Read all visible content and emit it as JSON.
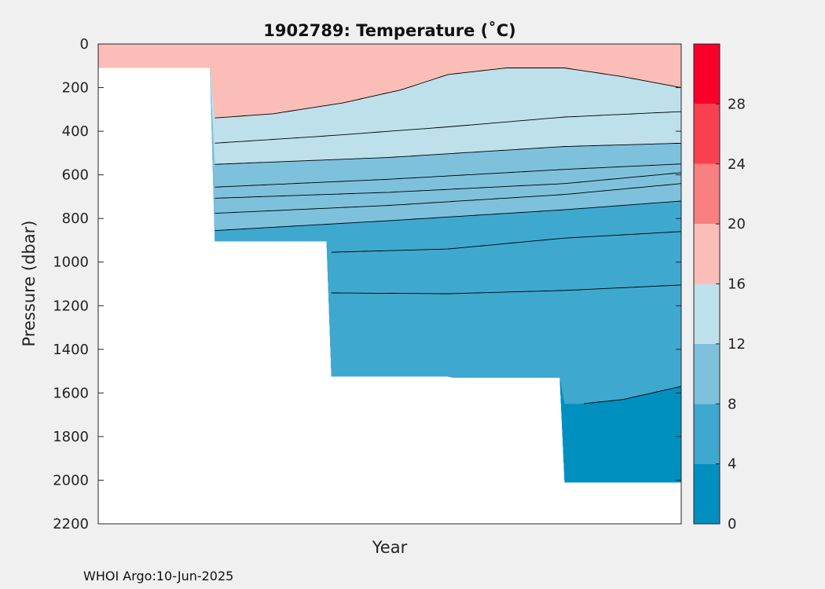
{
  "chart_data": {
    "type": "heatmap",
    "title": "1902789:  Temperature (˚C)",
    "xlabel": "Year",
    "ylabel": "Pressure (dbar)",
    "ylim": [
      0,
      2200
    ],
    "yticks": [
      "0",
      "200",
      "400",
      "600",
      "800",
      "1000",
      "1200",
      "1400",
      "1600",
      "1800",
      "2000",
      "2200"
    ],
    "colorbar": {
      "range": [
        0,
        32
      ],
      "ticks": [
        "0",
        "4",
        "8",
        "12",
        "16",
        "20",
        "24",
        "28"
      ],
      "bands": [
        {
          "from": 0,
          "to": 4,
          "color": "#0090c0"
        },
        {
          "from": 4,
          "to": 8,
          "color": "#3fa8cf"
        },
        {
          "from": 8,
          "to": 12,
          "color": "#7ec1dd"
        },
        {
          "from": 12,
          "to": 16,
          "color": "#bee0eb"
        },
        {
          "from": 16,
          "to": 20,
          "color": "#fbbdb7"
        },
        {
          "from": 20,
          "to": 24,
          "color": "#f88080"
        },
        {
          "from": 24,
          "to": 28,
          "color": "#f84050"
        },
        {
          "from": 28,
          "to": 32,
          "color": "#f8002a"
        }
      ]
    },
    "profiles": [
      {
        "max_pressure": 110
      },
      {
        "max_pressure": 905
      },
      {
        "max_pressure": 1525
      },
      {
        "max_pressure": 1530
      },
      {
        "max_pressure": 2010
      }
    ],
    "isotherms": [
      {
        "temp": 16,
        "x": [
          0.17,
          0.3,
          0.42,
          0.52,
          0.6,
          0.7,
          0.8,
          0.9,
          1.0
        ],
        "p": [
          345,
          320,
          270,
          210,
          140,
          110,
          110,
          150,
          200
        ]
      },
      {
        "temp": 14,
        "x": [
          0.17,
          0.4,
          0.6,
          0.8,
          1.0
        ],
        "p": [
          460,
          420,
          380,
          335,
          310
        ]
      },
      {
        "temp": 12,
        "x": [
          0.17,
          0.5,
          0.8,
          1.0
        ],
        "p": [
          555,
          520,
          470,
          455
        ]
      },
      {
        "temp": 11,
        "x": [
          0.17,
          0.5,
          0.8,
          1.0
        ],
        "p": [
          660,
          620,
          575,
          550
        ]
      },
      {
        "temp": 10,
        "x": [
          0.17,
          0.5,
          0.8,
          1.0
        ],
        "p": [
          710,
          680,
          640,
          590
        ]
      },
      {
        "temp": 9,
        "x": [
          0.17,
          0.5,
          0.8,
          1.0
        ],
        "p": [
          780,
          740,
          690,
          640
        ]
      },
      {
        "temp": 8,
        "x": [
          0.17,
          0.5,
          0.8,
          1.0
        ],
        "p": [
          860,
          810,
          760,
          720
        ]
      },
      {
        "temp": 7,
        "x": [
          0.33,
          0.6,
          0.8,
          1.0
        ],
        "p": [
          960,
          940,
          890,
          860
        ]
      },
      {
        "temp": 6,
        "x": [
          0.33,
          0.6,
          0.8,
          1.0
        ],
        "p": [
          1140,
          1145,
          1130,
          1105
        ]
      },
      {
        "temp": 4,
        "x": [
          0.83,
          0.9,
          0.95,
          1.0
        ],
        "p": [
          1650,
          1630,
          1600,
          1570
        ]
      }
    ]
  },
  "footer": "WHOI Argo:10-Jun-2025"
}
